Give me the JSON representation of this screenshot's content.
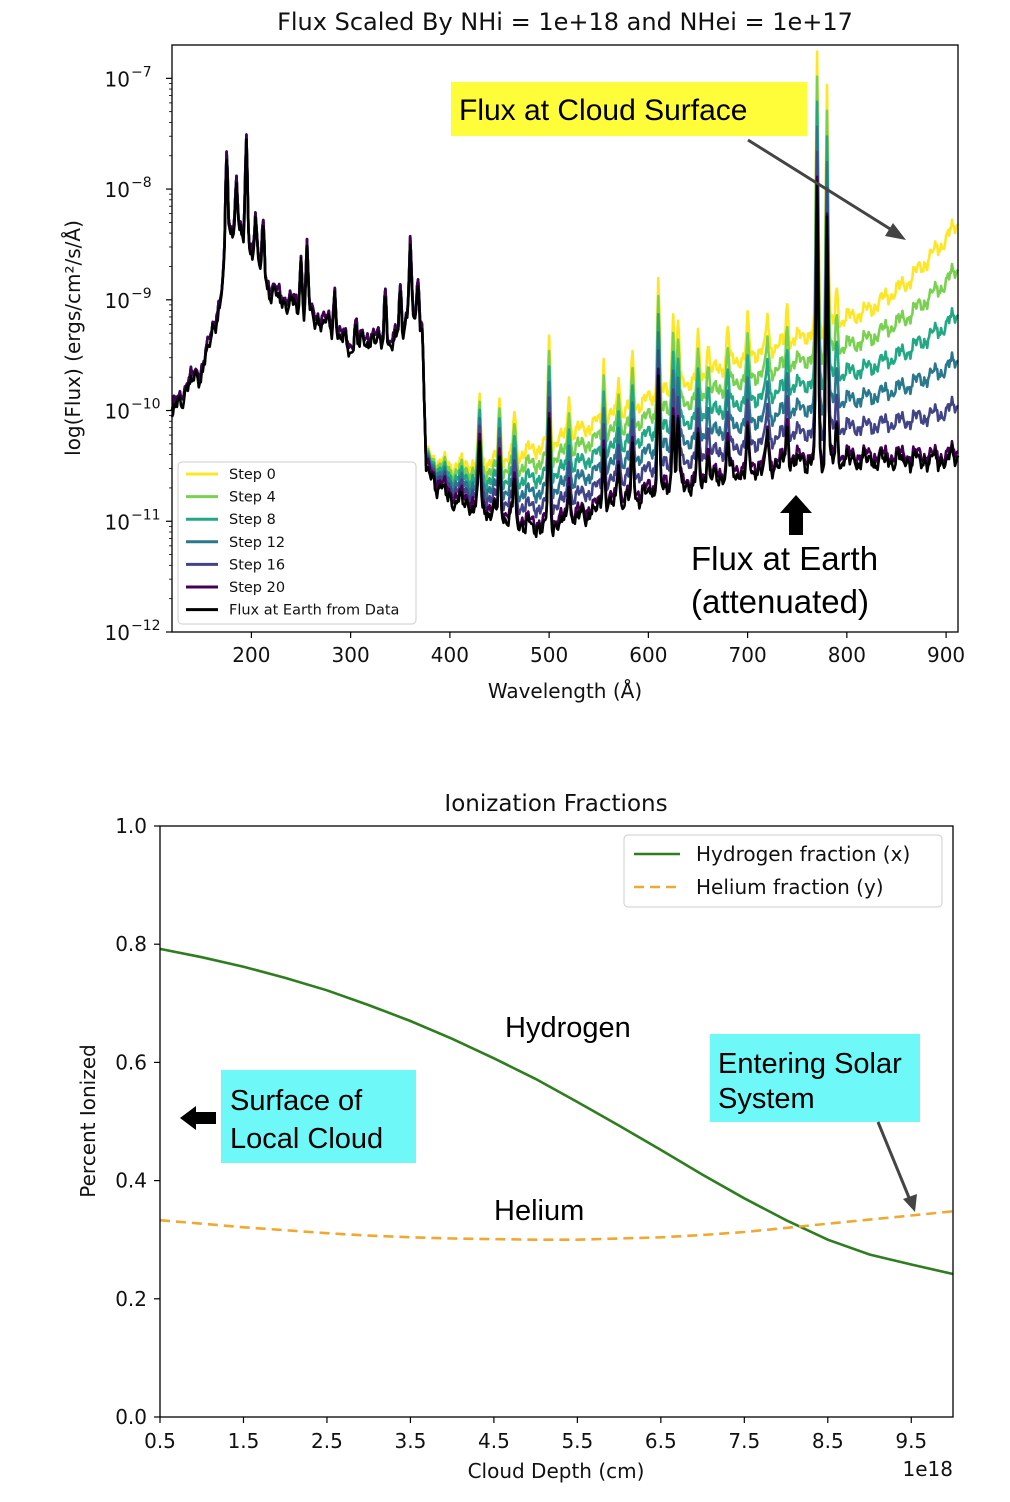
{
  "chart_data": [
    {
      "type": "line",
      "title": "Flux Scaled By NHi = 1e+18 and NHei = 1e+17",
      "xlabel": "Wavelength (Å)",
      "ylabel": "log(Flux) (ergs/cm²/s/Å)",
      "yscale": "log",
      "xlim": [
        120,
        912
      ],
      "ylim": [
        1e-12,
        2e-07
      ],
      "x_ticks": [
        200,
        300,
        400,
        500,
        600,
        700,
        800,
        900
      ],
      "x_tick_labels": [
        "200",
        "300",
        "400",
        "500",
        "600",
        "700",
        "800",
        "900"
      ],
      "y_ticks": [
        1e-12,
        1e-11,
        1e-10,
        1e-09,
        1e-08,
        1e-07
      ],
      "y_tick_labels": [
        {
          "base": "10",
          "exp": "−12"
        },
        {
          "base": "10",
          "exp": "−11"
        },
        {
          "base": "10",
          "exp": "−10"
        },
        {
          "base": "10",
          "exp": "−9"
        },
        {
          "base": "10",
          "exp": "−8"
        },
        {
          "base": "10",
          "exp": "−7"
        }
      ],
      "legend_position": "lower-left",
      "series": [
        {
          "name": "Step 0",
          "color": "#fde725",
          "attenuation": 0.0
        },
        {
          "name": "Step 4",
          "color": "#7ad151",
          "attenuation": 0.2
        },
        {
          "name": "Step 8",
          "color": "#22a884",
          "attenuation": 0.4
        },
        {
          "name": "Step 12",
          "color": "#2a788e",
          "attenuation": 0.6
        },
        {
          "name": "Step 16",
          "color": "#414487",
          "attenuation": 0.8
        },
        {
          "name": "Step 20",
          "color": "#440154",
          "attenuation": 1.0
        },
        {
          "name": "Flux at Earth from Data",
          "color": "#000000",
          "attenuation": 1.0
        }
      ],
      "baseline_log10_flux": [
        [
          120,
          -10.0
        ],
        [
          135,
          -9.75
        ],
        [
          150,
          -9.6
        ],
        [
          160,
          -9.3
        ],
        [
          170,
          -8.9
        ],
        [
          180,
          -8.3
        ],
        [
          200,
          -8.5
        ],
        [
          220,
          -8.9
        ],
        [
          240,
          -9.0
        ],
        [
          260,
          -9.1
        ],
        [
          280,
          -9.2
        ],
        [
          300,
          -9.4
        ],
        [
          320,
          -9.3
        ],
        [
          340,
          -9.4
        ],
        [
          360,
          -9.1
        ],
        [
          372,
          -9.2
        ],
        [
          376,
          -10.5
        ],
        [
          400,
          -10.75
        ],
        [
          420,
          -10.8
        ],
        [
          450,
          -10.9
        ],
        [
          480,
          -11.0
        ],
        [
          500,
          -11.0
        ],
        [
          520,
          -10.95
        ],
        [
          560,
          -10.8
        ],
        [
          600,
          -10.7
        ],
        [
          650,
          -10.6
        ],
        [
          700,
          -10.5
        ],
        [
          740,
          -10.42
        ],
        [
          780,
          -10.4
        ],
        [
          820,
          -10.4
        ],
        [
          860,
          -10.4
        ],
        [
          900,
          -10.4
        ],
        [
          912,
          -10.35
        ]
      ],
      "surface_log10_flux": [
        [
          376,
          -10.4
        ],
        [
          400,
          -10.5
        ],
        [
          450,
          -10.45
        ],
        [
          500,
          -10.3
        ],
        [
          550,
          -10.1
        ],
        [
          600,
          -9.9
        ],
        [
          650,
          -9.7
        ],
        [
          700,
          -9.5
        ],
        [
          750,
          -9.35
        ],
        [
          790,
          -9.2
        ],
        [
          820,
          -9.1
        ],
        [
          860,
          -8.85
        ],
        [
          900,
          -8.45
        ],
        [
          912,
          -8.3
        ]
      ],
      "emission_lines": [
        [
          175,
          0.95
        ],
        [
          185,
          0.5
        ],
        [
          195,
          0.9
        ],
        [
          204,
          0.35
        ],
        [
          212,
          0.45
        ],
        [
          250,
          0.45
        ],
        [
          256,
          0.55
        ],
        [
          284,
          0.35
        ],
        [
          305,
          0.2
        ],
        [
          335,
          0.55
        ],
        [
          350,
          0.4
        ],
        [
          360,
          0.6
        ],
        [
          368,
          0.4
        ],
        [
          430,
          0.6
        ],
        [
          450,
          0.55
        ],
        [
          465,
          0.4
        ],
        [
          500,
          0.95
        ],
        [
          520,
          0.4
        ],
        [
          555,
          0.55
        ],
        [
          570,
          0.35
        ],
        [
          584,
          0.45
        ],
        [
          610,
          1.1
        ],
        [
          625,
          0.75
        ],
        [
          630,
          0.6
        ],
        [
          650,
          0.35
        ],
        [
          660,
          0.3
        ],
        [
          680,
          0.35
        ],
        [
          700,
          0.3
        ],
        [
          720,
          0.3
        ],
        [
          740,
          0.35
        ],
        [
          770,
          2.5
        ],
        [
          780,
          2.2
        ],
        [
          790,
          0.3
        ]
      ],
      "annotations": [
        {
          "text": "Flux at Cloud Surface",
          "style": "yellow-box",
          "points_to": "Step 0 near 870 Å"
        },
        {
          "text": "Flux at Earth",
          "style": "plain"
        },
        {
          "text": "(attenuated)",
          "style": "plain"
        }
      ]
    },
    {
      "type": "line",
      "title": "Ionization Fractions",
      "xlabel": "Cloud Depth (cm)",
      "ylabel": "Percent Ionized",
      "x_offset_label": "1e18",
      "xlim": [
        0.5,
        10.0
      ],
      "ylim": [
        0.0,
        1.0
      ],
      "x_ticks": [
        0.5,
        1.5,
        2.5,
        3.5,
        4.5,
        5.5,
        6.5,
        7.5,
        8.5,
        9.5
      ],
      "x_tick_labels": [
        "0.5",
        "1.5",
        "2.5",
        "3.5",
        "4.5",
        "5.5",
        "6.5",
        "7.5",
        "8.5",
        "9.5"
      ],
      "y_ticks": [
        0.0,
        0.2,
        0.4,
        0.6,
        0.8,
        1.0
      ],
      "y_tick_labels": [
        "0.0",
        "0.2",
        "0.4",
        "0.6",
        "0.8",
        "1.0"
      ],
      "legend_position": "upper-right",
      "series": [
        {
          "name": "Hydrogen fraction (x)",
          "color": "#2e7d1f",
          "style": "solid",
          "x": [
            0.5,
            1.0,
            1.5,
            2.0,
            2.5,
            3.0,
            3.5,
            4.0,
            4.5,
            5.0,
            5.5,
            6.0,
            6.5,
            7.0,
            7.5,
            8.0,
            8.5,
            9.0,
            9.5,
            10.0
          ],
          "y": [
            0.792,
            0.778,
            0.762,
            0.743,
            0.722,
            0.697,
            0.67,
            0.64,
            0.607,
            0.572,
            0.533,
            0.493,
            0.452,
            0.41,
            0.37,
            0.333,
            0.3,
            0.275,
            0.258,
            0.242
          ]
        },
        {
          "name": "Helium fraction (y)",
          "color": "#f0a830",
          "style": "dashed",
          "x": [
            0.5,
            1.0,
            1.5,
            2.0,
            2.5,
            3.0,
            3.5,
            4.0,
            4.5,
            5.0,
            5.5,
            6.0,
            6.5,
            7.0,
            7.5,
            8.0,
            8.5,
            9.0,
            9.5,
            10.0
          ],
          "y": [
            0.333,
            0.327,
            0.321,
            0.316,
            0.311,
            0.307,
            0.304,
            0.302,
            0.301,
            0.3,
            0.3,
            0.302,
            0.304,
            0.308,
            0.313,
            0.32,
            0.327,
            0.334,
            0.341,
            0.348
          ]
        }
      ],
      "annotations": [
        {
          "text": "Hydrogen",
          "style": "plain"
        },
        {
          "text": "Helium",
          "style": "plain"
        },
        {
          "text": "Surface of",
          "style": "cyan-box"
        },
        {
          "text": "Local Cloud",
          "style": "cyan-box"
        },
        {
          "text": "Entering Solar",
          "style": "cyan-box"
        },
        {
          "text": "System",
          "style": "cyan-box",
          "points_to": "Helium curve near 9.6e18 cm"
        }
      ]
    }
  ]
}
